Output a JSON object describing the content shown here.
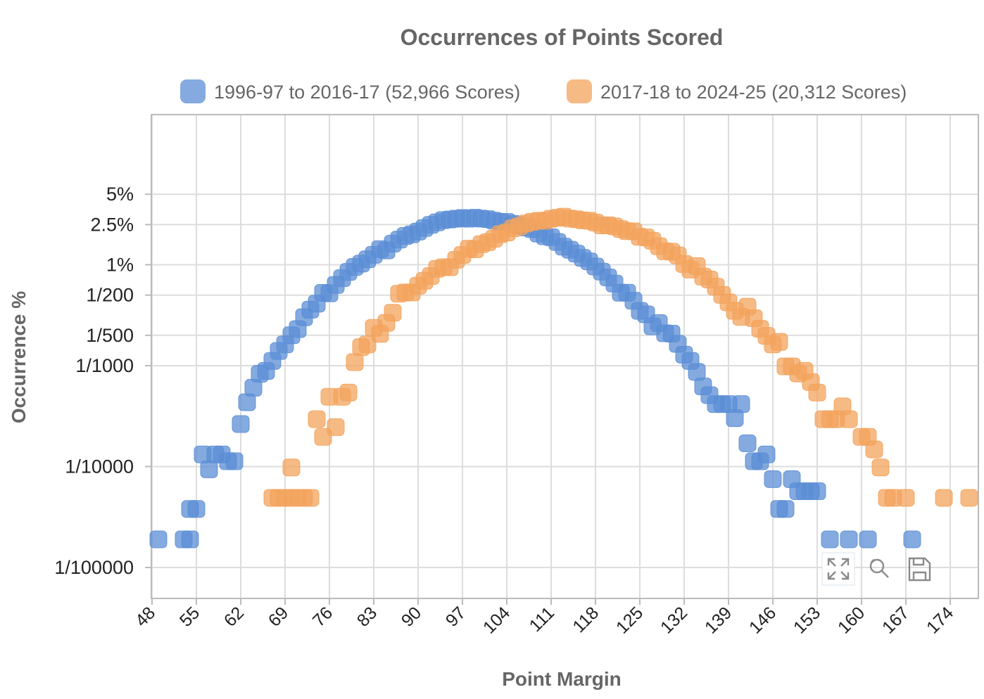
{
  "chart_data": {
    "type": "scatter",
    "title": "Occurrences of Points Scored",
    "xlabel": "Point Margin",
    "ylabel": "Occurrence %",
    "x_ticks": [
      48,
      55,
      62,
      69,
      76,
      83,
      90,
      97,
      104,
      111,
      118,
      125,
      132,
      139,
      146,
      153,
      160,
      167,
      174
    ],
    "xlim": [
      48,
      177
    ],
    "y_scale": "log",
    "ylim": [
      0.0007,
      8
    ],
    "y_ticks": [
      {
        "value": 5,
        "label": "5%"
      },
      {
        "value": 2.5,
        "label": "2.5%"
      },
      {
        "value": 1,
        "label": "1%"
      },
      {
        "value": 0.5,
        "label": "1/200"
      },
      {
        "value": 0.2,
        "label": "1/500"
      },
      {
        "value": 0.1,
        "label": "1/1000"
      },
      {
        "value": 0.01,
        "label": "1/10000"
      },
      {
        "value": 0.001,
        "label": "1/100000"
      }
    ],
    "grid": true,
    "legend_position": "top",
    "series": [
      {
        "name": "1996-97 to 2016-17 (52,966 Scores)",
        "color": "#5b8ed6",
        "points": [
          [
            49,
            0.0019
          ],
          [
            53,
            0.0019
          ],
          [
            54,
            0.0019
          ],
          [
            54,
            0.0038
          ],
          [
            55,
            0.0038
          ],
          [
            56,
            0.0132
          ],
          [
            57,
            0.0094
          ],
          [
            58,
            0.0132
          ],
          [
            59,
            0.0132
          ],
          [
            60,
            0.0113
          ],
          [
            61,
            0.0113
          ],
          [
            62,
            0.0264
          ],
          [
            63,
            0.0434
          ],
          [
            64,
            0.0604
          ],
          [
            65,
            0.0831
          ],
          [
            66,
            0.0887
          ],
          [
            67,
            0.1114
          ],
          [
            68,
            0.1397
          ],
          [
            69,
            0.1624
          ],
          [
            70,
            0.2001
          ],
          [
            71,
            0.2303
          ],
          [
            72,
            0.3021
          ],
          [
            73,
            0.3588
          ],
          [
            74,
            0.4116
          ],
          [
            75,
            0.5267
          ],
          [
            76,
            0.5211
          ],
          [
            77,
            0.6306
          ],
          [
            78,
            0.7363
          ],
          [
            79,
            0.8496
          ],
          [
            80,
            0.9517
          ],
          [
            81,
            1.0271
          ],
          [
            82,
            1.1329
          ],
          [
            83,
            1.2537
          ],
          [
            84,
            1.4255
          ],
          [
            85,
            1.3877
          ],
          [
            86,
            1.6198
          ],
          [
            87,
            1.7747
          ],
          [
            88,
            1.9314
          ],
          [
            89,
            2.0012
          ],
          [
            90,
            2.1353
          ],
          [
            91,
            2.3106
          ],
          [
            92,
            2.4862
          ],
          [
            93,
            2.6315
          ],
          [
            94,
            2.7712
          ],
          [
            95,
            2.8071
          ],
          [
            96,
            2.8618
          ],
          [
            97,
            2.9072
          ],
          [
            98,
            2.8618
          ],
          [
            99,
            2.9242
          ],
          [
            100,
            2.8674
          ],
          [
            101,
            2.8335
          ],
          [
            102,
            2.7372
          ],
          [
            103,
            2.6617
          ],
          [
            104,
            2.6559
          ],
          [
            105,
            2.5408
          ],
          [
            106,
            2.4635
          ],
          [
            107,
            2.3445
          ],
          [
            108,
            2.2577
          ],
          [
            109,
            2.0371
          ],
          [
            110,
            1.9164
          ],
          [
            111,
            1.8728
          ],
          [
            112,
            1.6824
          ],
          [
            113,
            1.5122
          ],
          [
            114,
            1.4086
          ],
          [
            115,
            1.2897
          ],
          [
            116,
            1.1688
          ],
          [
            117,
            1.0801
          ],
          [
            118,
            0.9612
          ],
          [
            119,
            0.8553
          ],
          [
            120,
            0.7495
          ],
          [
            121,
            0.6514
          ],
          [
            122,
            0.5287
          ],
          [
            123,
            0.5287
          ],
          [
            124,
            0.4399
          ],
          [
            125,
            0.3495
          ],
          [
            126,
            0.3229
          ],
          [
            127,
            0.2454
          ],
          [
            128,
            0.2643
          ],
          [
            129,
            0.2095
          ],
          [
            130,
            0.2076
          ],
          [
            131,
            0.1643
          ],
          [
            132,
            0.1284
          ],
          [
            133,
            0.1114
          ],
          [
            134,
            0.0868
          ],
          [
            135,
            0.0623
          ],
          [
            136,
            0.051
          ],
          [
            137,
            0.0416
          ],
          [
            138,
            0.0416
          ],
          [
            139,
            0.0416
          ],
          [
            140,
            0.0302
          ],
          [
            141,
            0.0416
          ],
          [
            142,
            0.017
          ],
          [
            143,
            0.0113
          ],
          [
            144,
            0.0113
          ],
          [
            145,
            0.0132
          ],
          [
            146,
            0.0075
          ],
          [
            147,
            0.0038
          ],
          [
            148,
            0.0038
          ],
          [
            149,
            0.0075
          ],
          [
            150,
            0.0057
          ],
          [
            151,
            0.0057
          ],
          [
            152,
            0.0057
          ],
          [
            153,
            0.0057
          ],
          [
            155,
            0.0019
          ],
          [
            158,
            0.0019
          ],
          [
            161,
            0.0019
          ],
          [
            168,
            0.0019
          ]
        ]
      },
      {
        "name": "2017-18 to 2024-25 (20,312 Scores)",
        "color": "#f3a35c",
        "points": [
          [
            67,
            0.0049
          ],
          [
            68,
            0.0049
          ],
          [
            69,
            0.0049
          ],
          [
            70,
            0.0049
          ],
          [
            70,
            0.0098
          ],
          [
            71,
            0.0049
          ],
          [
            72,
            0.0049
          ],
          [
            73,
            0.0049
          ],
          [
            74,
            0.0295
          ],
          [
            75,
            0.0197
          ],
          [
            76,
            0.0492
          ],
          [
            77,
            0.0246
          ],
          [
            78,
            0.0492
          ],
          [
            79,
            0.0541
          ],
          [
            80,
            0.1083
          ],
          [
            81,
            0.1526
          ],
          [
            82,
            0.1624
          ],
          [
            83,
            0.2363
          ],
          [
            84,
            0.2068
          ],
          [
            85,
            0.2658
          ],
          [
            86,
            0.3348
          ],
          [
            87,
            0.5169
          ],
          [
            88,
            0.5317
          ],
          [
            89,
            0.5317
          ],
          [
            90,
            0.6203
          ],
          [
            91,
            0.6941
          ],
          [
            92,
            0.7729
          ],
          [
            93,
            0.9108
          ],
          [
            94,
            0.9453
          ],
          [
            95,
            0.9453
          ],
          [
            96,
            1.1178
          ],
          [
            97,
            1.2504
          ],
          [
            98,
            1.4424
          ],
          [
            99,
            1.4228
          ],
          [
            100,
            1.5998
          ],
          [
            101,
            1.6735
          ],
          [
            102,
            1.8119
          ],
          [
            103,
            2.0086
          ],
          [
            104,
            2.0874
          ],
          [
            105,
            2.3003
          ],
          [
            106,
            2.4117
          ],
          [
            107,
            2.5603
          ],
          [
            108,
            2.6587
          ],
          [
            109,
            2.7326
          ],
          [
            110,
            2.7326
          ],
          [
            111,
            2.8607
          ],
          [
            112,
            2.92
          ],
          [
            113,
            2.9931
          ],
          [
            114,
            2.8655
          ],
          [
            115,
            2.8261
          ],
          [
            116,
            2.7523
          ],
          [
            117,
            2.7326
          ],
          [
            118,
            2.6193
          ],
          [
            119,
            2.4564
          ],
          [
            120,
            2.4614
          ],
          [
            121,
            2.4021
          ],
          [
            122,
            2.2595
          ],
          [
            123,
            2.1508
          ],
          [
            124,
            2.1465
          ],
          [
            125,
            1.8905
          ],
          [
            126,
            1.8657
          ],
          [
            127,
            1.7276
          ],
          [
            128,
            1.5257
          ],
          [
            129,
            1.3588
          ],
          [
            130,
            1.3488
          ],
          [
            131,
            1.2358
          ],
          [
            132,
            1.0187
          ],
          [
            133,
            0.8958
          ],
          [
            134,
            0.9698
          ],
          [
            135,
            0.7632
          ],
          [
            136,
            0.7137
          ],
          [
            137,
            0.6056
          ],
          [
            138,
            0.5022
          ],
          [
            139,
            0.4234
          ],
          [
            140,
            0.3494
          ],
          [
            141,
            0.3046
          ],
          [
            142,
            0.3839
          ],
          [
            143,
            0.2955
          ],
          [
            144,
            0.2319
          ],
          [
            145,
            0.1975
          ],
          [
            146,
            0.1624
          ],
          [
            147,
            0.1722
          ],
          [
            148,
            0.0984
          ],
          [
            149,
            0.0984
          ],
          [
            150,
            0.0837
          ],
          [
            151,
            0.0886
          ],
          [
            152,
            0.0689
          ],
          [
            153,
            0.0541
          ],
          [
            154,
            0.0295
          ],
          [
            155,
            0.0295
          ],
          [
            156,
            0.0295
          ],
          [
            157,
            0.0395
          ],
          [
            158,
            0.0295
          ],
          [
            160,
            0.0197
          ],
          [
            161,
            0.0197
          ],
          [
            162,
            0.0148
          ],
          [
            163,
            0.0098
          ],
          [
            164,
            0.0049
          ],
          [
            165,
            0.0049
          ],
          [
            167,
            0.0049
          ],
          [
            173,
            0.0049
          ],
          [
            177,
            0.0049
          ]
        ]
      }
    ]
  },
  "toolbox": {
    "items": [
      "restore-icon",
      "zoom-reset-icon",
      "save-as-image-icon"
    ]
  }
}
